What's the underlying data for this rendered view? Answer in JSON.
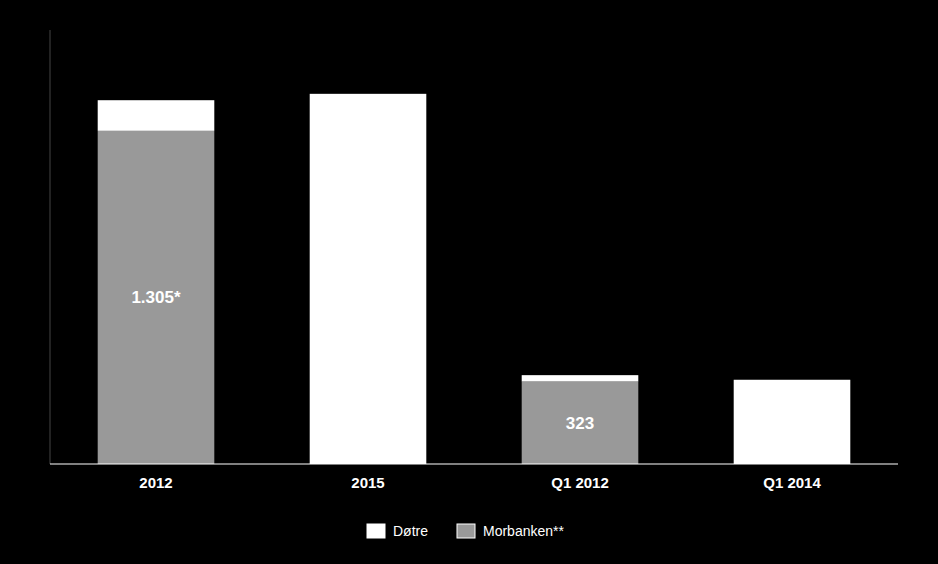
{
  "chart_data": {
    "type": "bar",
    "stacked": true,
    "categories": [
      "2012",
      "2015",
      "Q1 2012",
      "Q1 2014"
    ],
    "series": [
      {
        "name": "Morbanken**",
        "color": "#999999",
        "values": [
          1305,
          0,
          323,
          0
        ],
        "value_labels": [
          "1.305*",
          null,
          "323",
          null
        ]
      },
      {
        "name": "Døtre",
        "color": "#ffffff",
        "values": [
          120,
          1450,
          25,
          330
        ]
      }
    ],
    "ylim": [
      0,
      1700
    ],
    "yticks": [],
    "tick_labels": "x",
    "grid": false,
    "legend": "bottom"
  }
}
